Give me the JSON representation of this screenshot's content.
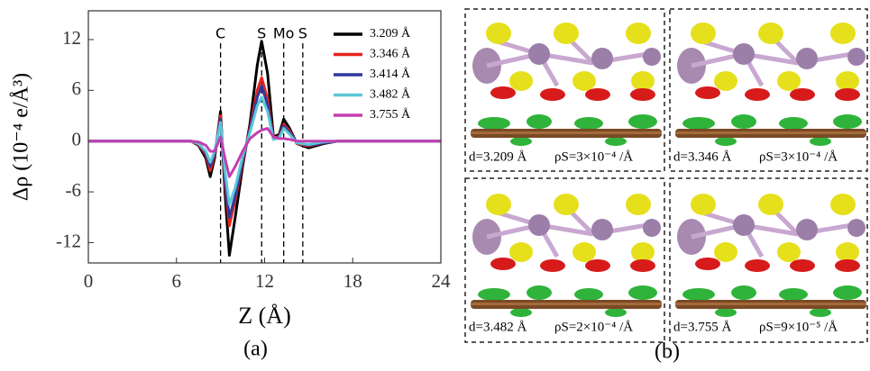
{
  "chart_data": {
    "type": "line",
    "y_label": "Δρ (10⁻⁴ e/Å³)",
    "x_label": "Z (Å)",
    "x": [
      0,
      6,
      7,
      7.5,
      8,
      8.3,
      8.6,
      9,
      9.3,
      9.6,
      10,
      10.5,
      11,
      11.5,
      11.8,
      12.2,
      12.6,
      13,
      13.3,
      13.7,
      14.2,
      15,
      16,
      17,
      24
    ],
    "series": [
      {
        "name": "3.209 Å",
        "color": "#000000",
        "values": [
          0,
          0,
          0,
          -0.5,
          -2,
          -4.2,
          -2,
          3.5,
          -6,
          -13.5,
          -9,
          -3,
          2,
          9,
          11.8,
          8,
          0.5,
          0.8,
          2.6,
          1.5,
          -0.3,
          -0.8,
          -0.3,
          0,
          0
        ]
      },
      {
        "name": "3.346 Å",
        "color": "#e8231f",
        "values": [
          0,
          0,
          0,
          -0.4,
          -1.6,
          -3.5,
          -1.6,
          3,
          -5,
          -10,
          -7,
          -2.5,
          1.5,
          6,
          7.5,
          5,
          0.3,
          0.6,
          2,
          1.2,
          -0.3,
          -0.6,
          -0.2,
          0,
          0
        ]
      },
      {
        "name": "3.414 Å",
        "color": "#2e3a9c",
        "values": [
          0,
          0,
          0,
          -0.3,
          -1.4,
          -3,
          -1.4,
          2.6,
          -4.5,
          -9,
          -6.5,
          -2.2,
          1.3,
          5.2,
          6.5,
          4.3,
          0.2,
          0.5,
          1.8,
          1,
          -0.2,
          -0.5,
          -0.2,
          0,
          0
        ]
      },
      {
        "name": "3.482 Å",
        "color": "#5cc8d8",
        "values": [
          0,
          0,
          0,
          -0.3,
          -1.2,
          -2.5,
          -1.2,
          2.2,
          -3.5,
          -7.5,
          -5.5,
          -1.8,
          1,
          4.2,
          5.2,
          3.5,
          0.2,
          0.4,
          1.5,
          0.8,
          -0.2,
          -0.4,
          -0.1,
          0,
          0
        ]
      },
      {
        "name": "3.755 Å",
        "color": "#c23fb0",
        "values": [
          0,
          0,
          0,
          -0.1,
          -0.5,
          -1.2,
          -1.2,
          0.5,
          -2,
          -4.2,
          -3,
          -1.2,
          0.3,
          1,
          1.3,
          1.5,
          0.5,
          0.3,
          0.3,
          0.2,
          0,
          0,
          0,
          0,
          0
        ]
      }
    ],
    "xlim": [
      0,
      24
    ],
    "xticks": [
      0,
      6,
      12,
      18,
      24
    ],
    "ylim": [
      -14.4,
      15.4
    ],
    "yticks": [
      -12,
      -6,
      0,
      6,
      12
    ],
    "vlines": [
      {
        "x": 9.0,
        "label": "C"
      },
      {
        "x": 11.8,
        "label": "S"
      },
      {
        "x": 13.3,
        "label": "Mo"
      },
      {
        "x": 14.6,
        "label": "S"
      }
    ],
    "legend": "upper right"
  },
  "figure": {
    "panel_labels": [
      "(a)",
      "(b)"
    ],
    "captions": [
      {
        "d": "d=3.209 Å",
        "rho": "ρS=3×10⁻⁴ /Å"
      },
      {
        "d": "d=3.346 Å",
        "rho": "ρS=3×10⁻⁴ /Å"
      },
      {
        "d": "d=3.482 Å",
        "rho": "ρS=2×10⁻⁴ /Å"
      },
      {
        "d": "d=3.755 Å",
        "rho": "ρS=9×10⁻⁵ /Å"
      }
    ]
  }
}
